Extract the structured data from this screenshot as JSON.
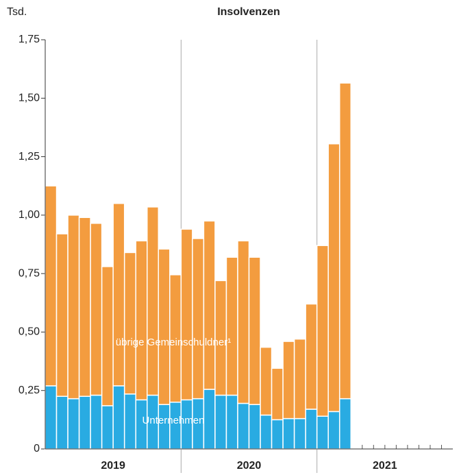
{
  "chart_data": {
    "type": "stacked_bar",
    "title": "Insolvenzen",
    "y_label": "Tsd.",
    "categories": [
      null,
      null,
      null,
      null,
      null,
      null,
      null,
      null,
      null,
      null,
      null,
      null,
      null,
      null,
      null,
      null,
      null,
      null,
      null,
      null,
      null,
      null,
      null,
      null,
      null,
      null,
      null
    ],
    "year_labels": [
      "2019",
      "2020",
      "2021"
    ],
    "series": [
      {
        "name": "Unternehmen",
        "color": "#29abe2",
        "values": [
          0.27,
          0.225,
          0.215,
          0.225,
          0.23,
          0.185,
          0.27,
          0.235,
          0.21,
          0.23,
          0.19,
          0.2,
          0.21,
          0.215,
          0.255,
          0.23,
          0.23,
          0.195,
          0.19,
          0.145,
          0.125,
          0.13,
          0.13,
          0.17,
          0.14,
          0.16,
          0.215
        ]
      },
      {
        "name": "übrige Gemeinschuldner¹",
        "color": "#f39c3f",
        "values": [
          0.855,
          0.695,
          0.785,
          0.765,
          0.735,
          0.595,
          0.78,
          0.605,
          0.68,
          0.805,
          0.665,
          0.545,
          0.73,
          0.685,
          0.72,
          0.49,
          0.59,
          0.695,
          0.63,
          0.29,
          0.22,
          0.33,
          0.34,
          0.45,
          0.73,
          1.145,
          1.35
        ]
      }
    ],
    "ylim": [
      0,
      1.75
    ],
    "yticks": [
      0,
      {
        "value": 0.25,
        "label": "0,25"
      },
      {
        "value": 0.5,
        "label": "0,50"
      },
      {
        "value": 0.75,
        "label": "0,75"
      },
      {
        "value": 1,
        "label": "1,00"
      },
      {
        "value": 1.25,
        "label": "1,25"
      },
      {
        "value": 1.5,
        "label": "1,50"
      },
      {
        "value": 1.75,
        "label": "1,75"
      }
    ],
    "grid": false
  }
}
